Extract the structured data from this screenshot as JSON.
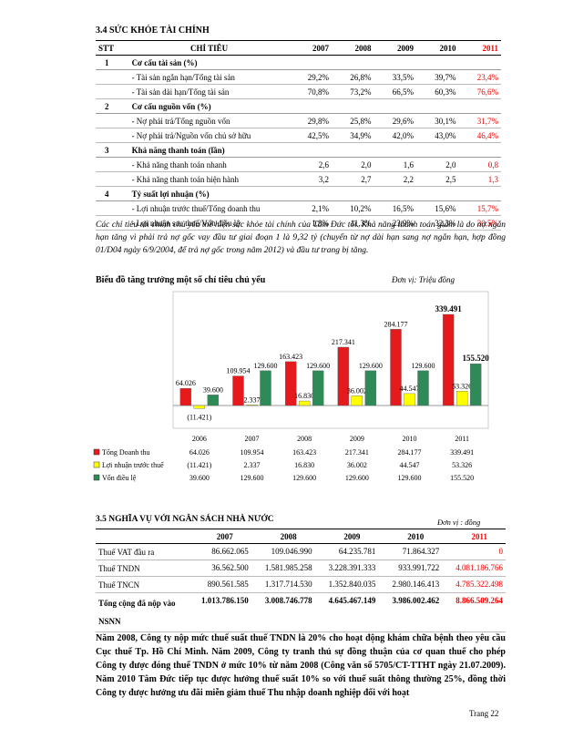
{
  "section_1": {
    "heading": "3.4  SỨC KHỎE TÀI CHÍNH",
    "table": {
      "header": [
        "STT",
        "CHỈ TIÊU",
        "2007",
        "2008",
        "2009",
        "2010",
        "2011"
      ],
      "groups": [
        {
          "stt": "1",
          "title": "Cơ cấu tài sản (%)",
          "rows": [
            {
              "label": "- Tài sản ngắn hạn/Tổng tài sản",
              "values": [
                "29,2%",
                "26,8%",
                "33,5%",
                "39,7%",
                "23,4%"
              ]
            },
            {
              "label": "- Tài sản dài hạn/Tổng tài sản",
              "values": [
                "70,8%",
                "73,2%",
                "66,5%",
                "60,3%",
                "76,6%"
              ]
            }
          ]
        },
        {
          "stt": "2",
          "title": "Cơ cấu nguồn vốn (%)",
          "rows": [
            {
              "label": "- Nợ phải trả/Tổng nguồn vốn",
              "values": [
                "29,8%",
                "25,8%",
                "29,6%",
                "30,1%",
                "31,7%"
              ]
            },
            {
              "label": "- Nợ phải trả/Nguồn vốn chủ sở hữu",
              "values": [
                "42,5%",
                "34,9%",
                "42,0%",
                "43,0%",
                "46,4%"
              ]
            }
          ]
        },
        {
          "stt": "3",
          "title": "Khả năng thanh toán (lần)",
          "rows": [
            {
              "label": "- Khả năng thanh toán nhanh",
              "values": [
                "2,6",
                "2,0",
                "1,6",
                "2,0",
                "0,8"
              ]
            },
            {
              "label": "- Khả năng thanh toán hiện hành",
              "values": [
                "3,2",
                "2,7",
                "2,2",
                "2,5",
                "1,3"
              ]
            }
          ]
        },
        {
          "stt": "4",
          "title": "Tỷ suất lợi nhuận (%)",
          "rows": [
            {
              "label": "- Lợi nhuận trước thuế/Tổng doanh thu",
              "values": [
                "2,1%",
                "10,2%",
                "16,5%",
                "15,6%",
                "15,7%"
              ]
            },
            {
              "label": "- Lợi nhuận sau thuế/Vốn điều lệ",
              "values": [
                "1,8%",
                "11,3%",
                "23,9%",
                "32,3%",
                "30,5%"
              ]
            }
          ]
        }
      ]
    },
    "note": "Các chỉ tiêu tài chính chủ yếu thể hiện sức khỏe tài chính của Tâm Đức tốt. Khả năng thanh toán giảm là do nợ ngắn hạn tăng vì phải trả nợ gốc vay đầu tư giai đoạn 1 là 9,32 tỷ (chuyển từ nợ dài hạn sang nợ ngắn hạn, hợp đồng 01/D04 ngày 6/9/2004, để trả nợ gốc trong năm 2012) và đầu tư trang bị tăng."
  },
  "chart_data": {
    "type": "bar",
    "title": "Biểu đồ tăng trưởng một số chỉ tiêu chủ yếu",
    "unit_label": "Đơn vị: Triệu đồng",
    "categories": [
      "2006",
      "2007",
      "2008",
      "2009",
      "2010",
      "2011"
    ],
    "series": [
      {
        "name": "Tổng Doanh thu",
        "color": "#e41a1c",
        "values": [
          64026,
          109954,
          163423,
          217341,
          284177,
          339491
        ],
        "value_labels": [
          "64.026",
          "109.954",
          "163.423",
          "217.341",
          "284.177",
          "339.491"
        ]
      },
      {
        "name": "Lợi nhuận trước thuế",
        "color": "#ffff00",
        "values": [
          -11421,
          2337,
          16830,
          36002,
          44547,
          53326
        ],
        "value_labels": [
          "(11.421)",
          "2.337",
          "16.830",
          "36.002",
          "44.547",
          "53.326"
        ]
      },
      {
        "name": "Vốn điều lệ",
        "color": "#2e8b57",
        "values": [
          39600,
          129600,
          129600,
          129600,
          129600,
          155520
        ],
        "value_labels": [
          "39.600",
          "129.600",
          "129.600",
          "129.600",
          "129.600",
          "155.520"
        ]
      }
    ]
  },
  "section_2": {
    "heading": "3.5   NGHĨA VỤ VỚI NGÂN SÁCH NHÀ NƯỚC",
    "unit": "Đơn vị : đồng",
    "table": {
      "years": [
        "2007",
        "2008",
        "2009",
        "2010",
        "2011"
      ],
      "rows": [
        {
          "label": "Thuế VAT đầu ra",
          "values": [
            "86.662.065",
            "109.046.990",
            "64.235.781",
            "71.864.327",
            "0"
          ]
        },
        {
          "label": "Thuế TNDN",
          "values": [
            "36.562.500",
            "1.581.985.258",
            "3.228.391.333",
            "933.991.722",
            "4.081.186.766"
          ]
        },
        {
          "label": "Thuế TNCN",
          "values": [
            "890.561.585",
            "1.317.714.530",
            "1.352.840.035",
            "2.980.146.413",
            "4.785.322.498"
          ]
        },
        {
          "label": "Tổng cộng đã nộp vào NSNN",
          "values": [
            "1.013.786.150",
            "3.008.746.778",
            "4.645.467.149",
            "3.986.002.462",
            "8.866.509.264"
          ]
        }
      ]
    },
    "paragraph": "Năm 2008, Công ty nộp mức thuế suất thuế TNDN là 20% cho hoạt động khám chữa bệnh theo yêu cầu Cục thuế Tp. Hồ Chí Minh. Năm 2009, Công ty tranh thủ sự đồng thuận của cơ quan thuế cho phép Công ty được đóng thuế TNDN ở mức 10% từ năm 2008 (Công văn số 5705/CT-TTHT ngày 21.07.2009). Năm 2010 Tâm Đức tiếp tục được hưởng thuế suất 10% so với thuế suất thông thường 25%, đồng thời Công ty được hưởng ưu đãi miễn giảm thuế Thu nhập doanh nghiệp đối với hoạt"
  },
  "footer": "Trang 22"
}
